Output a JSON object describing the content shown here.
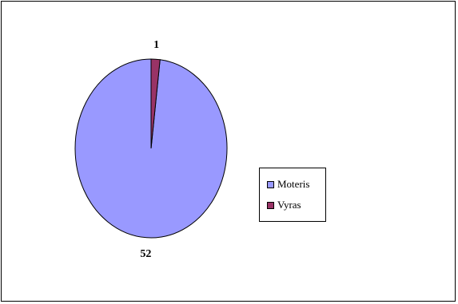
{
  "chart_data": {
    "type": "pie",
    "title": "",
    "categories": [
      "Moteris",
      "Vyras"
    ],
    "values": [
      52,
      1
    ],
    "colors": [
      "#9999FF",
      "#993366"
    ],
    "data_labels": [
      "52",
      "1"
    ],
    "start_angle_deg": 0,
    "direction": "counterclockwise",
    "legend": {
      "placement": "right",
      "entries": [
        {
          "label": "Moteris",
          "color": "#9999FF"
        },
        {
          "label": "Vyras",
          "color": "#993366"
        }
      ]
    }
  }
}
